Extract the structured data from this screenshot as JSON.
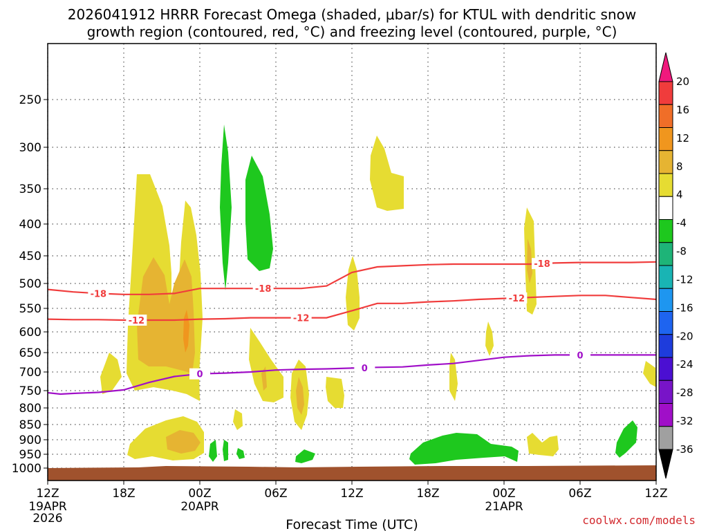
{
  "chart_data": {
    "type": "contour",
    "title_line1": "2026041912 HRRR Forecast Omega (shaded, μbar/s) for KTUL with dendritic snow",
    "title_line2": "growth region (contoured, red, °C) and freezing level (contoured, purple, °C)",
    "xlabel": "Forecast Time (UTC)",
    "credit": "coolwx.com/models",
    "x_range_hours": [
      0,
      48
    ],
    "x_ticks": [
      {
        "hour": 0,
        "label": "12Z",
        "sub": "19APR",
        "sub2": "2026"
      },
      {
        "hour": 6,
        "label": "18Z"
      },
      {
        "hour": 12,
        "label": "00Z",
        "sub": "20APR"
      },
      {
        "hour": 18,
        "label": "06Z"
      },
      {
        "hour": 24,
        "label": "12Z"
      },
      {
        "hour": 30,
        "label": "18Z"
      },
      {
        "hour": 36,
        "label": "00Z",
        "sub": "21APR"
      },
      {
        "hour": 42,
        "label": "06Z"
      },
      {
        "hour": 48,
        "label": "12Z"
      }
    ],
    "y_ticks_hpa": [
      "250",
      "300",
      "350",
      "400",
      "450",
      "500",
      "550",
      "600",
      "650",
      "700",
      "750",
      "800",
      "850",
      "900",
      "950",
      "1000"
    ],
    "colorbar": {
      "labels": [
        "20",
        "16",
        "12",
        "8",
        "4",
        "-4",
        "-8",
        "-12",
        "-16",
        "-20",
        "-24",
        "-28",
        "-32",
        "-36"
      ],
      "colors": [
        "#f0197d",
        "#f03c3c",
        "#f06e28",
        "#f0961e",
        "#e6b432",
        "#e6dc32",
        "#ffffff",
        "#1ec81e",
        "#1eb478",
        "#19b4b4",
        "#1e96f0",
        "#1e64f0",
        "#1e3cdc",
        "#4b0fd2",
        "#7814c8",
        "#a00fc8",
        "#a0a0a0",
        "#000000"
      ]
    },
    "contours": {
      "dgz_minus18": {
        "label": "-18",
        "color": "#f03c3c",
        "hours": [
          0,
          2,
          4,
          6,
          8,
          10,
          12,
          14,
          16,
          18,
          20,
          22,
          24,
          26,
          28,
          30,
          32,
          34,
          36,
          38,
          40,
          42,
          44,
          46,
          48
        ],
        "hpa": [
          512,
          517,
          520,
          522,
          522,
          520,
          510,
          510,
          510,
          510,
          510,
          505,
          480,
          470,
          468,
          466,
          465,
          465,
          465,
          465,
          463,
          462,
          462,
          462,
          461
        ]
      },
      "dgz_minus12": {
        "label": "-12",
        "color": "#f03c3c",
        "hours": [
          0,
          2,
          4,
          6,
          8,
          10,
          12,
          14,
          16,
          18,
          20,
          22,
          24,
          26,
          28,
          30,
          32,
          34,
          36,
          38,
          40,
          42,
          44,
          46,
          48
        ],
        "hpa": [
          573,
          574,
          574,
          575,
          575,
          575,
          573,
          572,
          570,
          570,
          570,
          570,
          555,
          540,
          540,
          537,
          535,
          532,
          530,
          528,
          526,
          524,
          524,
          528,
          532
        ]
      },
      "freezing_level": {
        "label": "0",
        "color": "#a00fc8",
        "hours": [
          0,
          1,
          2,
          4,
          6,
          8,
          10,
          12,
          14,
          16,
          18,
          20,
          22,
          24,
          26,
          28,
          30,
          32,
          34,
          36,
          38,
          40,
          42,
          44,
          46,
          48
        ],
        "hpa": [
          756,
          760,
          758,
          755,
          748,
          728,
          712,
          705,
          703,
          700,
          695,
          693,
          692,
          690,
          688,
          687,
          682,
          678,
          670,
          662,
          658,
          656,
          656,
          656,
          656,
          656
        ]
      }
    },
    "labels": {
      "m18": "-18",
      "m12": "-12",
      "zero": "0"
    }
  }
}
